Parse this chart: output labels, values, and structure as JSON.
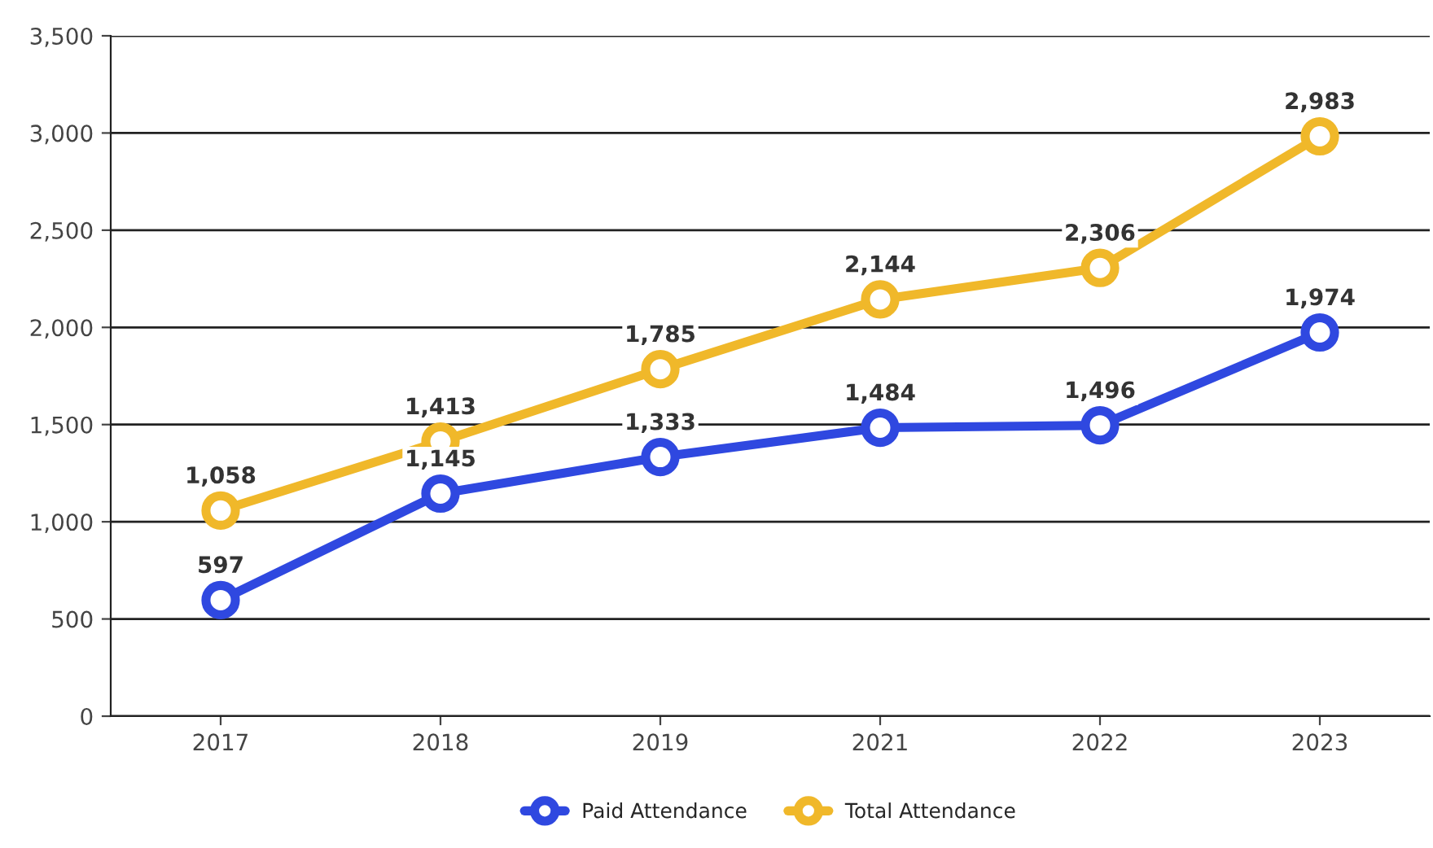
{
  "chart_data": {
    "type": "line",
    "categories": [
      "2017",
      "2018",
      "2019",
      "2021",
      "2022",
      "2023"
    ],
    "series": [
      {
        "name": "Paid Attendance",
        "color": "#2f48e0",
        "values": [
          597,
          1145,
          1333,
          1484,
          1496,
          1974
        ],
        "value_labels": [
          "597",
          "1,145",
          "1,333",
          "1,484",
          "1,496",
          "1,974"
        ]
      },
      {
        "name": "Total Attendance",
        "color": "#f0b82a",
        "values": [
          1058,
          1413,
          1785,
          2144,
          2306,
          2983
        ],
        "value_labels": [
          "1,058",
          "1,413",
          "1,785",
          "2,144",
          "2,306",
          "2,983"
        ]
      }
    ],
    "ylim": [
      0,
      3500
    ],
    "yticks": [
      {
        "value": 0,
        "label": "0"
      },
      {
        "value": 500,
        "label": "500"
      },
      {
        "value": 1000,
        "label": "1,000"
      },
      {
        "value": 1500,
        "label": "1,500"
      },
      {
        "value": 2000,
        "label": "2,000"
      },
      {
        "value": 2500,
        "label": "2,500"
      },
      {
        "value": 3000,
        "label": "3,000"
      },
      {
        "value": 3500,
        "label": "3,500"
      }
    ],
    "grid": "y",
    "legend": "bottom",
    "marker": "circle",
    "line_style": "solid"
  }
}
